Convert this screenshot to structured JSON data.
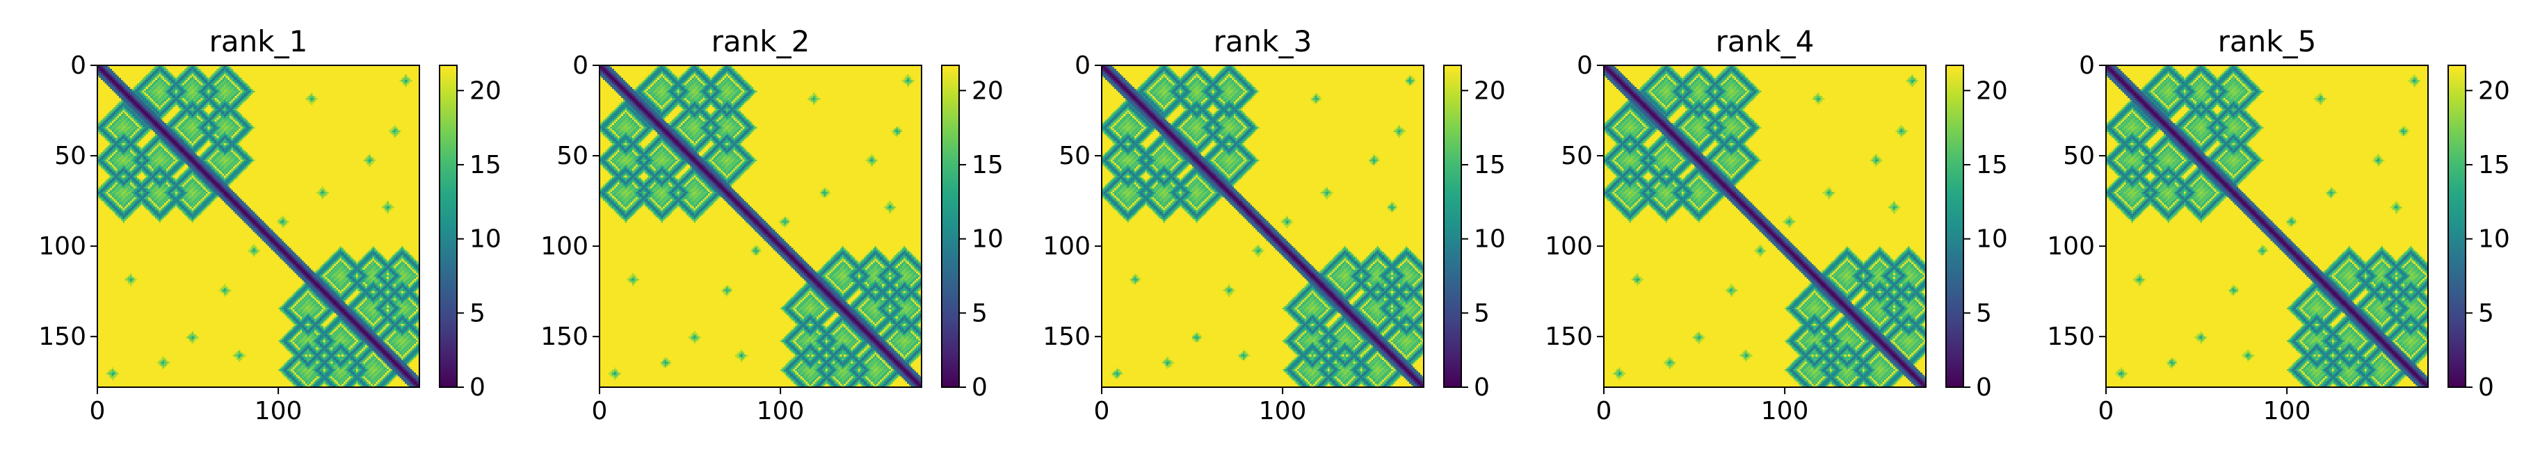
{
  "chart_data": [
    {
      "type": "heatmap",
      "title": "rank_1",
      "rows": 178,
      "cols": 178,
      "xticks": [
        0,
        100
      ],
      "yticks": [
        0,
        50,
        100,
        150
      ],
      "xlim": [
        0,
        178
      ],
      "ylim": [
        178,
        0
      ],
      "colorbar": {
        "ticks": [
          0,
          5,
          10,
          15,
          20
        ],
        "range": [
          0,
          21.7
        ],
        "colormap": "viridis"
      }
    },
    {
      "type": "heatmap",
      "title": "rank_2",
      "rows": 178,
      "cols": 178,
      "xticks": [
        0,
        100
      ],
      "yticks": [
        0,
        50,
        100,
        150
      ],
      "xlim": [
        0,
        178
      ],
      "ylim": [
        178,
        0
      ],
      "colorbar": {
        "ticks": [
          0,
          5,
          10,
          15,
          20
        ],
        "range": [
          0,
          21.7
        ],
        "colormap": "viridis"
      }
    },
    {
      "type": "heatmap",
      "title": "rank_3",
      "rows": 178,
      "cols": 178,
      "xticks": [
        0,
        100
      ],
      "yticks": [
        0,
        50,
        100,
        150
      ],
      "xlim": [
        0,
        178
      ],
      "ylim": [
        178,
        0
      ],
      "colorbar": {
        "ticks": [
          0,
          5,
          10,
          15,
          20
        ],
        "range": [
          0,
          21.7
        ],
        "colormap": "viridis"
      }
    },
    {
      "type": "heatmap",
      "title": "rank_4",
      "rows": 178,
      "cols": 178,
      "xticks": [
        0,
        100
      ],
      "yticks": [
        0,
        50,
        100,
        150
      ],
      "xlim": [
        0,
        178
      ],
      "ylim": [
        178,
        0
      ],
      "colorbar": {
        "ticks": [
          0,
          5,
          10,
          15,
          20
        ],
        "range": [
          0,
          21.7
        ],
        "colormap": "viridis"
      }
    },
    {
      "type": "heatmap",
      "title": "rank_5",
      "rows": 178,
      "cols": 178,
      "xticks": [
        0,
        100
      ],
      "yticks": [
        0,
        50,
        100,
        150
      ],
      "xlim": [
        0,
        178
      ],
      "ylim": [
        178,
        0
      ],
      "colorbar": {
        "ticks": [
          0,
          5,
          10,
          15,
          20
        ],
        "range": [
          0,
          21.7
        ],
        "colormap": "viridis"
      }
    }
  ],
  "colors": {
    "viridis_low": "#440154",
    "viridis_mid": "#21918c",
    "viridis_high": "#fde725",
    "axis": "#000000"
  }
}
